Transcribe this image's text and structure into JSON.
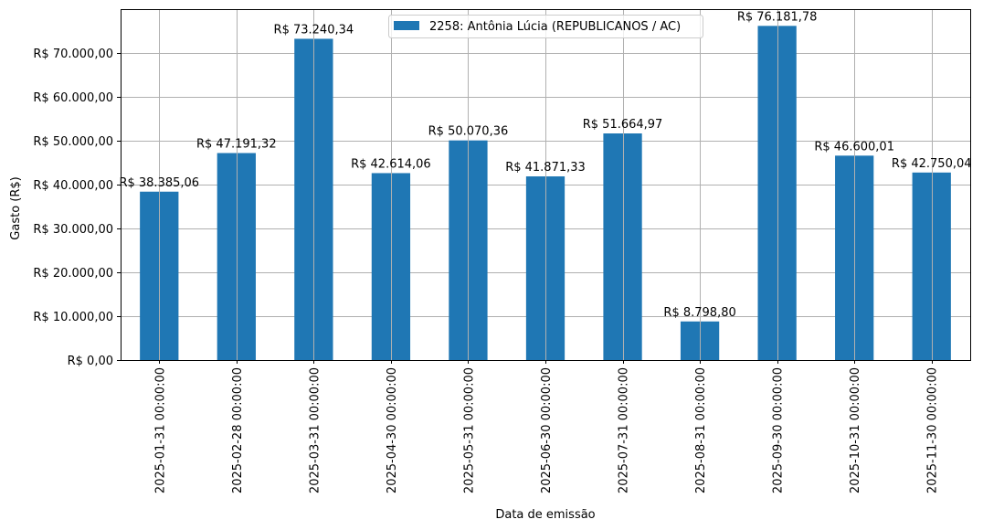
{
  "chart_data": {
    "type": "bar",
    "title": "",
    "xlabel": "Data de emissão",
    "ylabel": "Gasto (R$)",
    "ylim": [
      0,
      80000
    ],
    "grid": true,
    "legend_position": "upper center",
    "categories": [
      "2025-01-31 00:00:00",
      "2025-02-28 00:00:00",
      "2025-03-31 00:00:00",
      "2025-04-30 00:00:00",
      "2025-05-31 00:00:00",
      "2025-06-30 00:00:00",
      "2025-07-31 00:00:00",
      "2025-08-31 00:00:00",
      "2025-09-30 00:00:00",
      "2025-10-31 00:00:00",
      "2025-11-30 00:00:00"
    ],
    "series": [
      {
        "name": "2258: Antônia Lúcia (REPUBLICANOS / AC)",
        "color": "#1f77b4",
        "values": [
          38385.06,
          47191.32,
          73240.34,
          42614.06,
          50070.36,
          41871.33,
          51664.97,
          8798.8,
          76181.78,
          46600.01,
          42750.04
        ],
        "labels": [
          "R$ 38.385,06",
          "R$ 47.191,32",
          "R$ 73.240,34",
          "R$ 42.614,06",
          "R$ 50.070,36",
          "R$ 41.871,33",
          "R$ 51.664,97",
          "R$ 8.798,80",
          "R$ 76.181,78",
          "R$ 46.600,01",
          "R$ 42.750,04"
        ]
      }
    ],
    "yticks": [
      0,
      10000,
      20000,
      30000,
      40000,
      50000,
      60000,
      70000
    ],
    "ytick_labels": [
      "R$ 0,00",
      "R$ 10.000,00",
      "R$ 20.000,00",
      "R$ 30.000,00",
      "R$ 40.000,00",
      "R$ 50.000,00",
      "R$ 60.000,00",
      "R$ 70.000,00"
    ]
  },
  "colors": {
    "bar": "#1f77b4",
    "grid": "#b0b0b0",
    "axis": "#000000",
    "legend_border": "#cccccc"
  }
}
